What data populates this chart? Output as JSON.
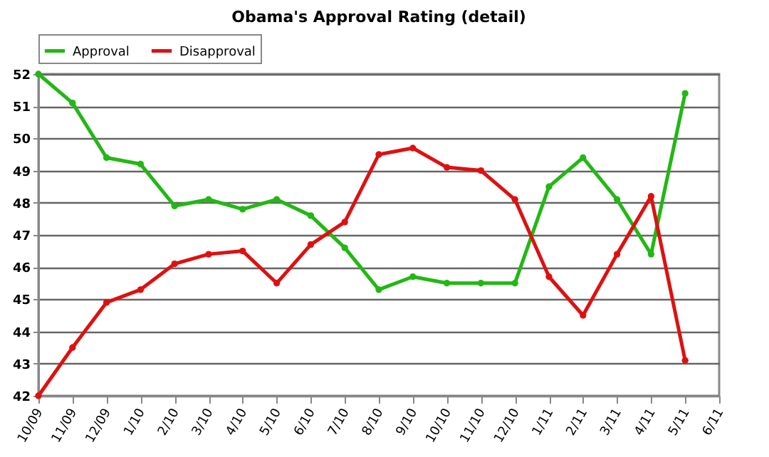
{
  "chart_data": {
    "type": "line",
    "title": "Obama's Approval Rating (detail)",
    "categories": [
      "10/09",
      "11/09",
      "12/09",
      "1/10",
      "2/10",
      "3/10",
      "4/10",
      "5/10",
      "6/10",
      "7/10",
      "8/10",
      "9/10",
      "10/10",
      "11/10",
      "12/10",
      "1/11",
      "2/11",
      "3/11",
      "4/11",
      "5/11",
      "6/11"
    ],
    "series": [
      {
        "name": "Approval",
        "color": "#22b814",
        "values": [
          52,
          51.1,
          49.4,
          49.2,
          47.9,
          48.1,
          47.8,
          48.1,
          47.6,
          46.6,
          45.3,
          45.7,
          45.5,
          45.5,
          45.5,
          48.5,
          49.4,
          48.1,
          46.4,
          51.4,
          null
        ]
      },
      {
        "name": "Disapproval",
        "color": "#dd1111",
        "values": [
          42,
          43.5,
          44.9,
          45.3,
          46.1,
          46.4,
          46.5,
          45.5,
          46.7,
          47.4,
          49.5,
          49.7,
          49.1,
          49.0,
          48.1,
          45.7,
          44.5,
          46.4,
          48.2,
          43.1,
          null
        ]
      }
    ],
    "ylim": [
      42,
      52
    ],
    "yticks": [
      42,
      43,
      44,
      45,
      46,
      47,
      48,
      49,
      50,
      51,
      52
    ],
    "grid": "y",
    "legend": "top",
    "marker": "circle",
    "line_style": "solid"
  }
}
